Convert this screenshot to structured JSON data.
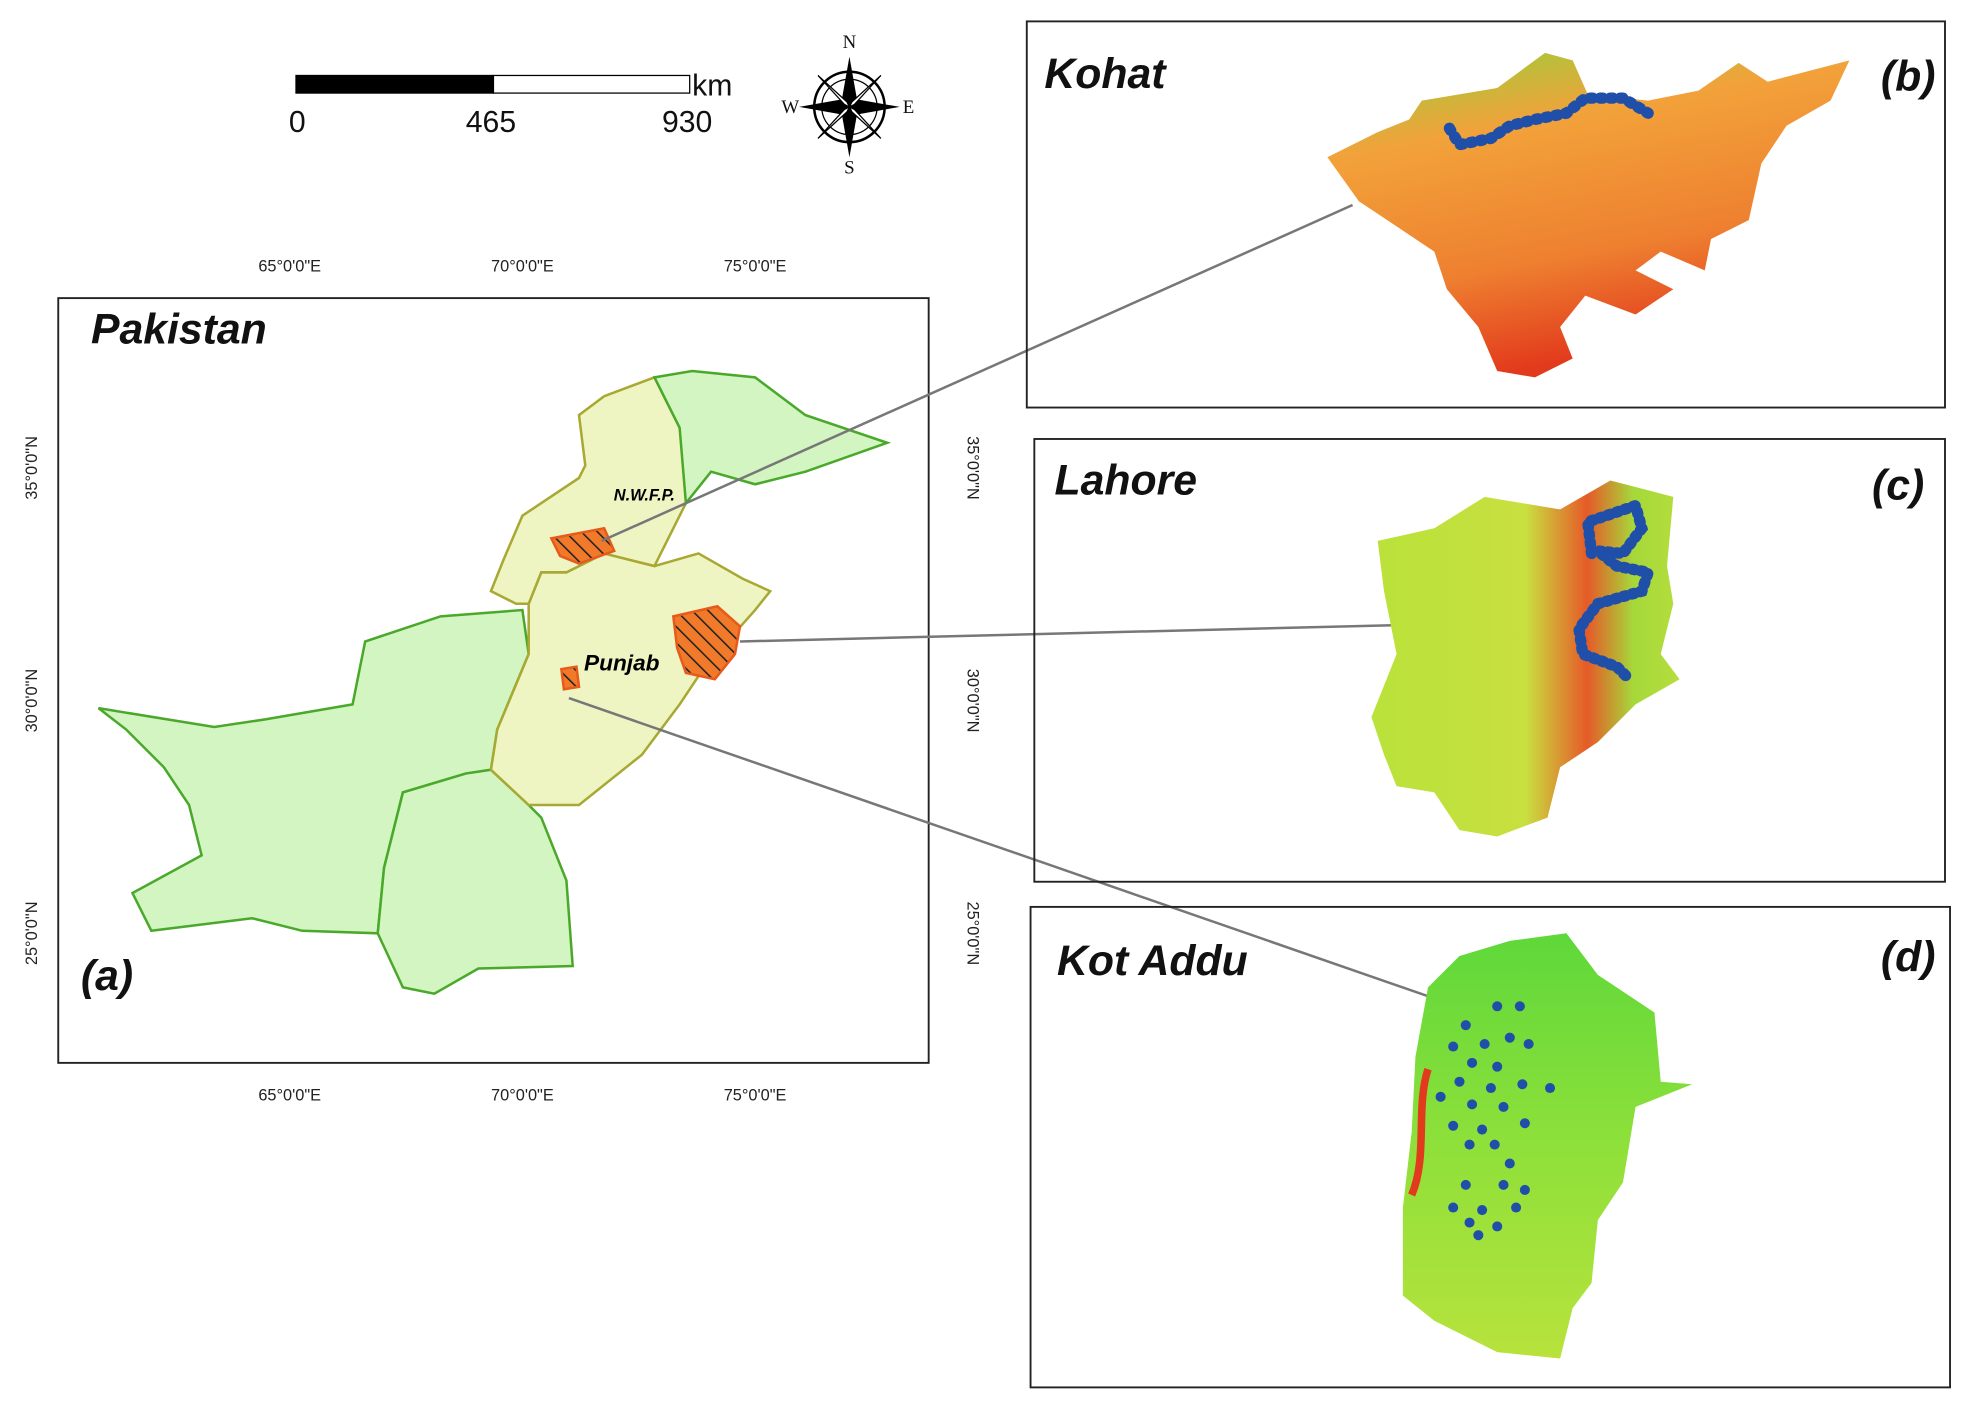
{
  "scale_bar": {
    "unit": "km",
    "labels": [
      "0",
      "465",
      "930"
    ]
  },
  "compass": {
    "north": "N",
    "south": "S",
    "east": "E",
    "west": "W"
  },
  "panel_a": {
    "title": "Pakistan",
    "label": "(a)",
    "x_labels": [
      "65°0'0\"E",
      "70°0'0\"E",
      "75°0'0\"E"
    ],
    "y_labels": [
      "35°0'0\"N",
      "30°0'0\"N",
      "25°0'0\"N"
    ],
    "regions": [
      "N.W.F.P.",
      "Punjab"
    ]
  },
  "panels": [
    {
      "title": "Kohat",
      "label": "(b)"
    },
    {
      "title": "Lahore",
      "label": "(c)"
    },
    {
      "title": "Kot Addu",
      "label": "(d)"
    }
  ]
}
